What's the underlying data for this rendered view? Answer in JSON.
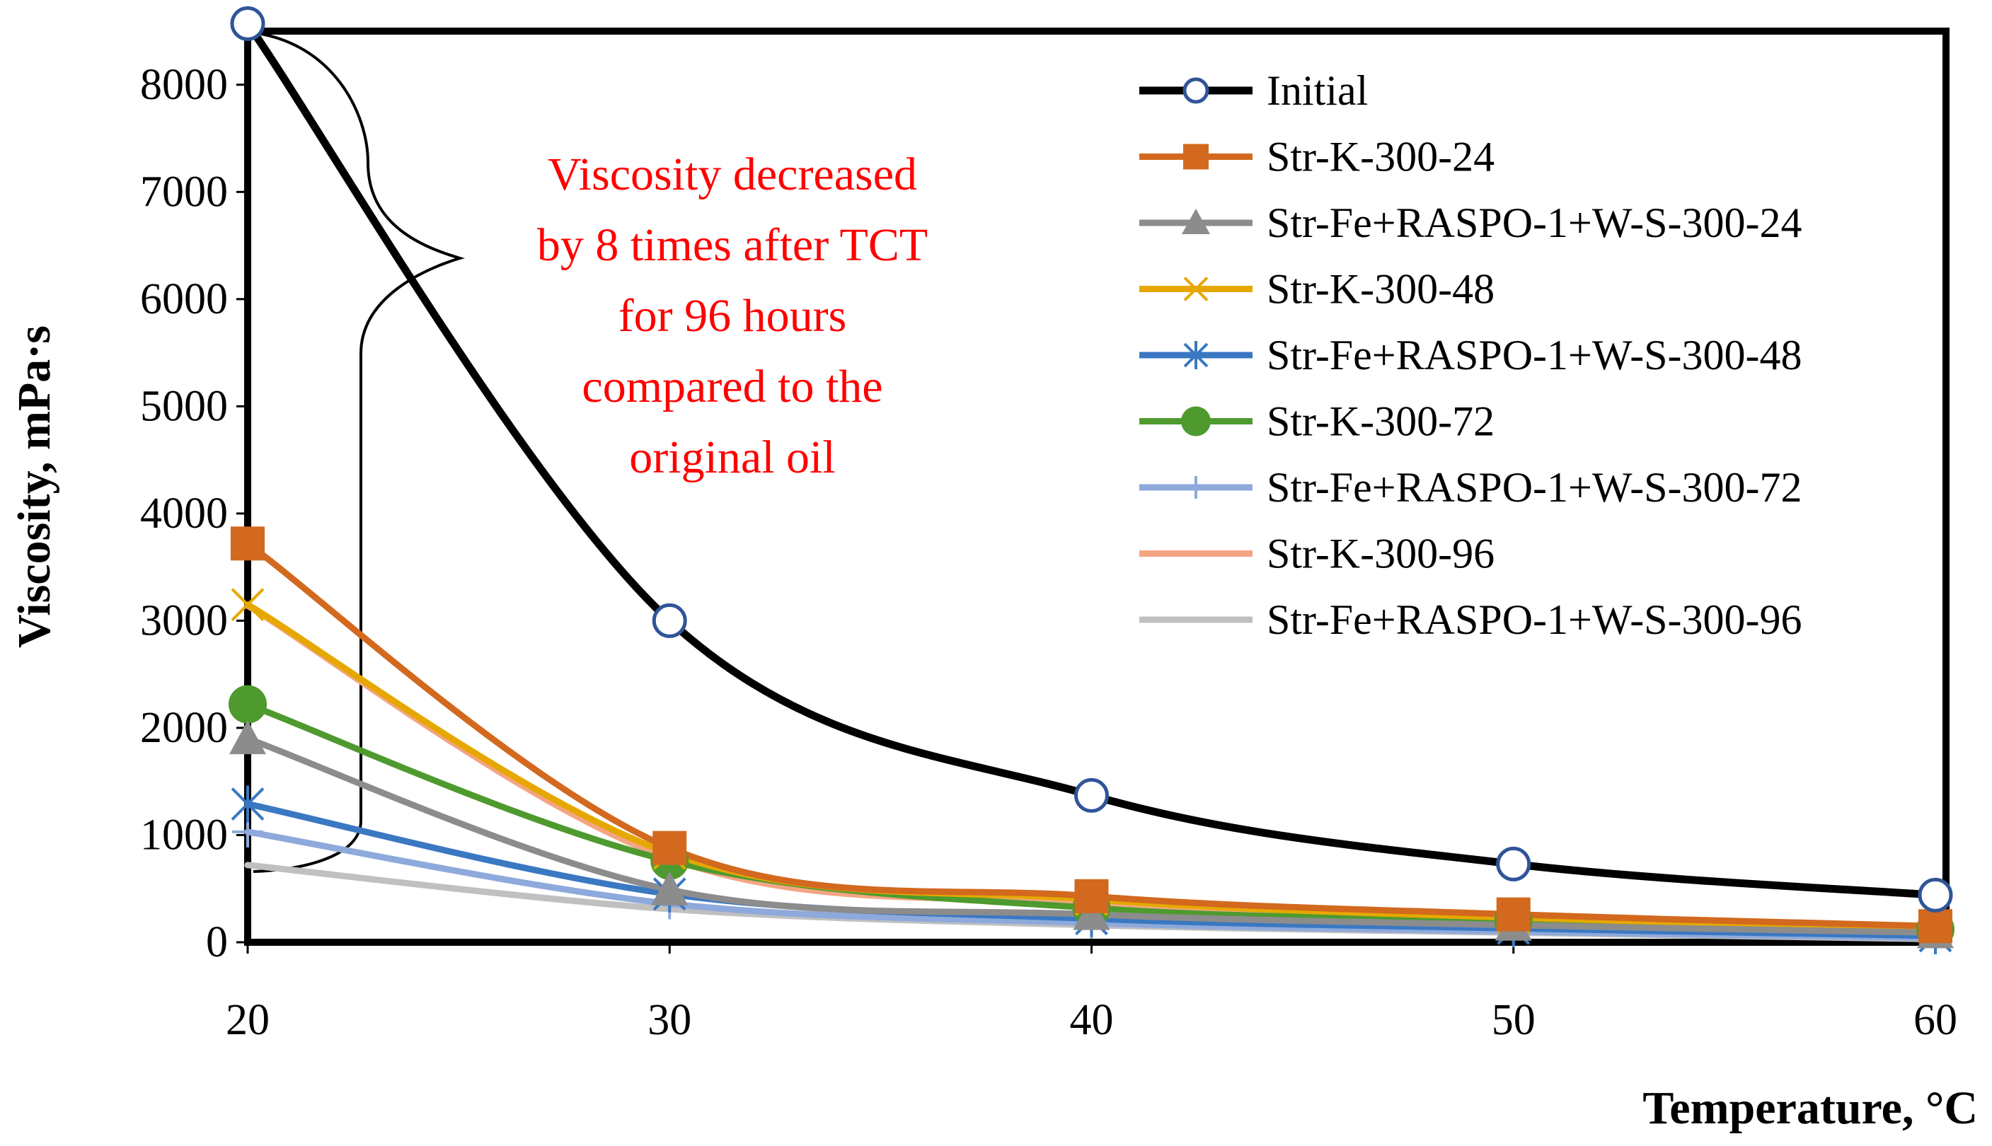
{
  "chart_data": {
    "type": "line",
    "title": "",
    "xlabel": "Temperature, °C",
    "ylabel": "Viscosity, mPa·s",
    "x": [
      20,
      30,
      40,
      50,
      60
    ],
    "xlim": [
      20,
      60
    ],
    "ylim": [
      0,
      8500
    ],
    "xticks": [
      20,
      30,
      40,
      50,
      60
    ],
    "yticks": [
      0,
      1000,
      2000,
      3000,
      4000,
      5000,
      6000,
      7000,
      8000
    ],
    "grid": false,
    "legend_position": "top-right",
    "series": [
      {
        "name": "Initial",
        "values": [
          8570,
          3000,
          1370,
          730,
          440
        ],
        "color": "#000000",
        "marker": "circle-open"
      },
      {
        "name": "Str-K-300-24",
        "values": [
          3720,
          880,
          430,
          260,
          150
        ],
        "color": "#d2691e",
        "marker": "square"
      },
      {
        "name": "Str-Fe+RASPO-1+W-S-300-24",
        "values": [
          1900,
          490,
          260,
          160,
          90
        ],
        "color": "#8c8c8c",
        "marker": "triangle"
      },
      {
        "name": "Str-K-300-48",
        "values": [
          3150,
          830,
          400,
          230,
          130
        ],
        "color": "#e6a800",
        "marker": "x"
      },
      {
        "name": "Str-Fe+RASPO-1+W-S-300-48",
        "values": [
          1290,
          450,
          220,
          130,
          60
        ],
        "color": "#3a78c2",
        "marker": "star"
      },
      {
        "name": "Str-K-300-72",
        "values": [
          2220,
          760,
          320,
          200,
          120
        ],
        "color": "#4e9a2f",
        "marker": "circle"
      },
      {
        "name": "Str-Fe+RASPO-1+W-S-300-72",
        "values": [
          1030,
          360,
          180,
          100,
          40
        ],
        "color": "#8ea9db",
        "marker": "plus"
      },
      {
        "name": "Str-K-300-96",
        "values": [
          3140,
          780,
          360,
          210,
          110
        ],
        "color": "#f4a582",
        "marker": "none"
      },
      {
        "name": "Str-Fe+RASPO-1+W-S-300-96",
        "values": [
          720,
          310,
          160,
          90,
          30
        ],
        "color": "#c0c0c0",
        "marker": "none"
      }
    ],
    "annotation": {
      "lines": [
        "Viscosity decreased",
        "by 8 times after TCT",
        "for 96 hours",
        "compared to the",
        "original oil"
      ],
      "color": "#ff0000"
    }
  }
}
